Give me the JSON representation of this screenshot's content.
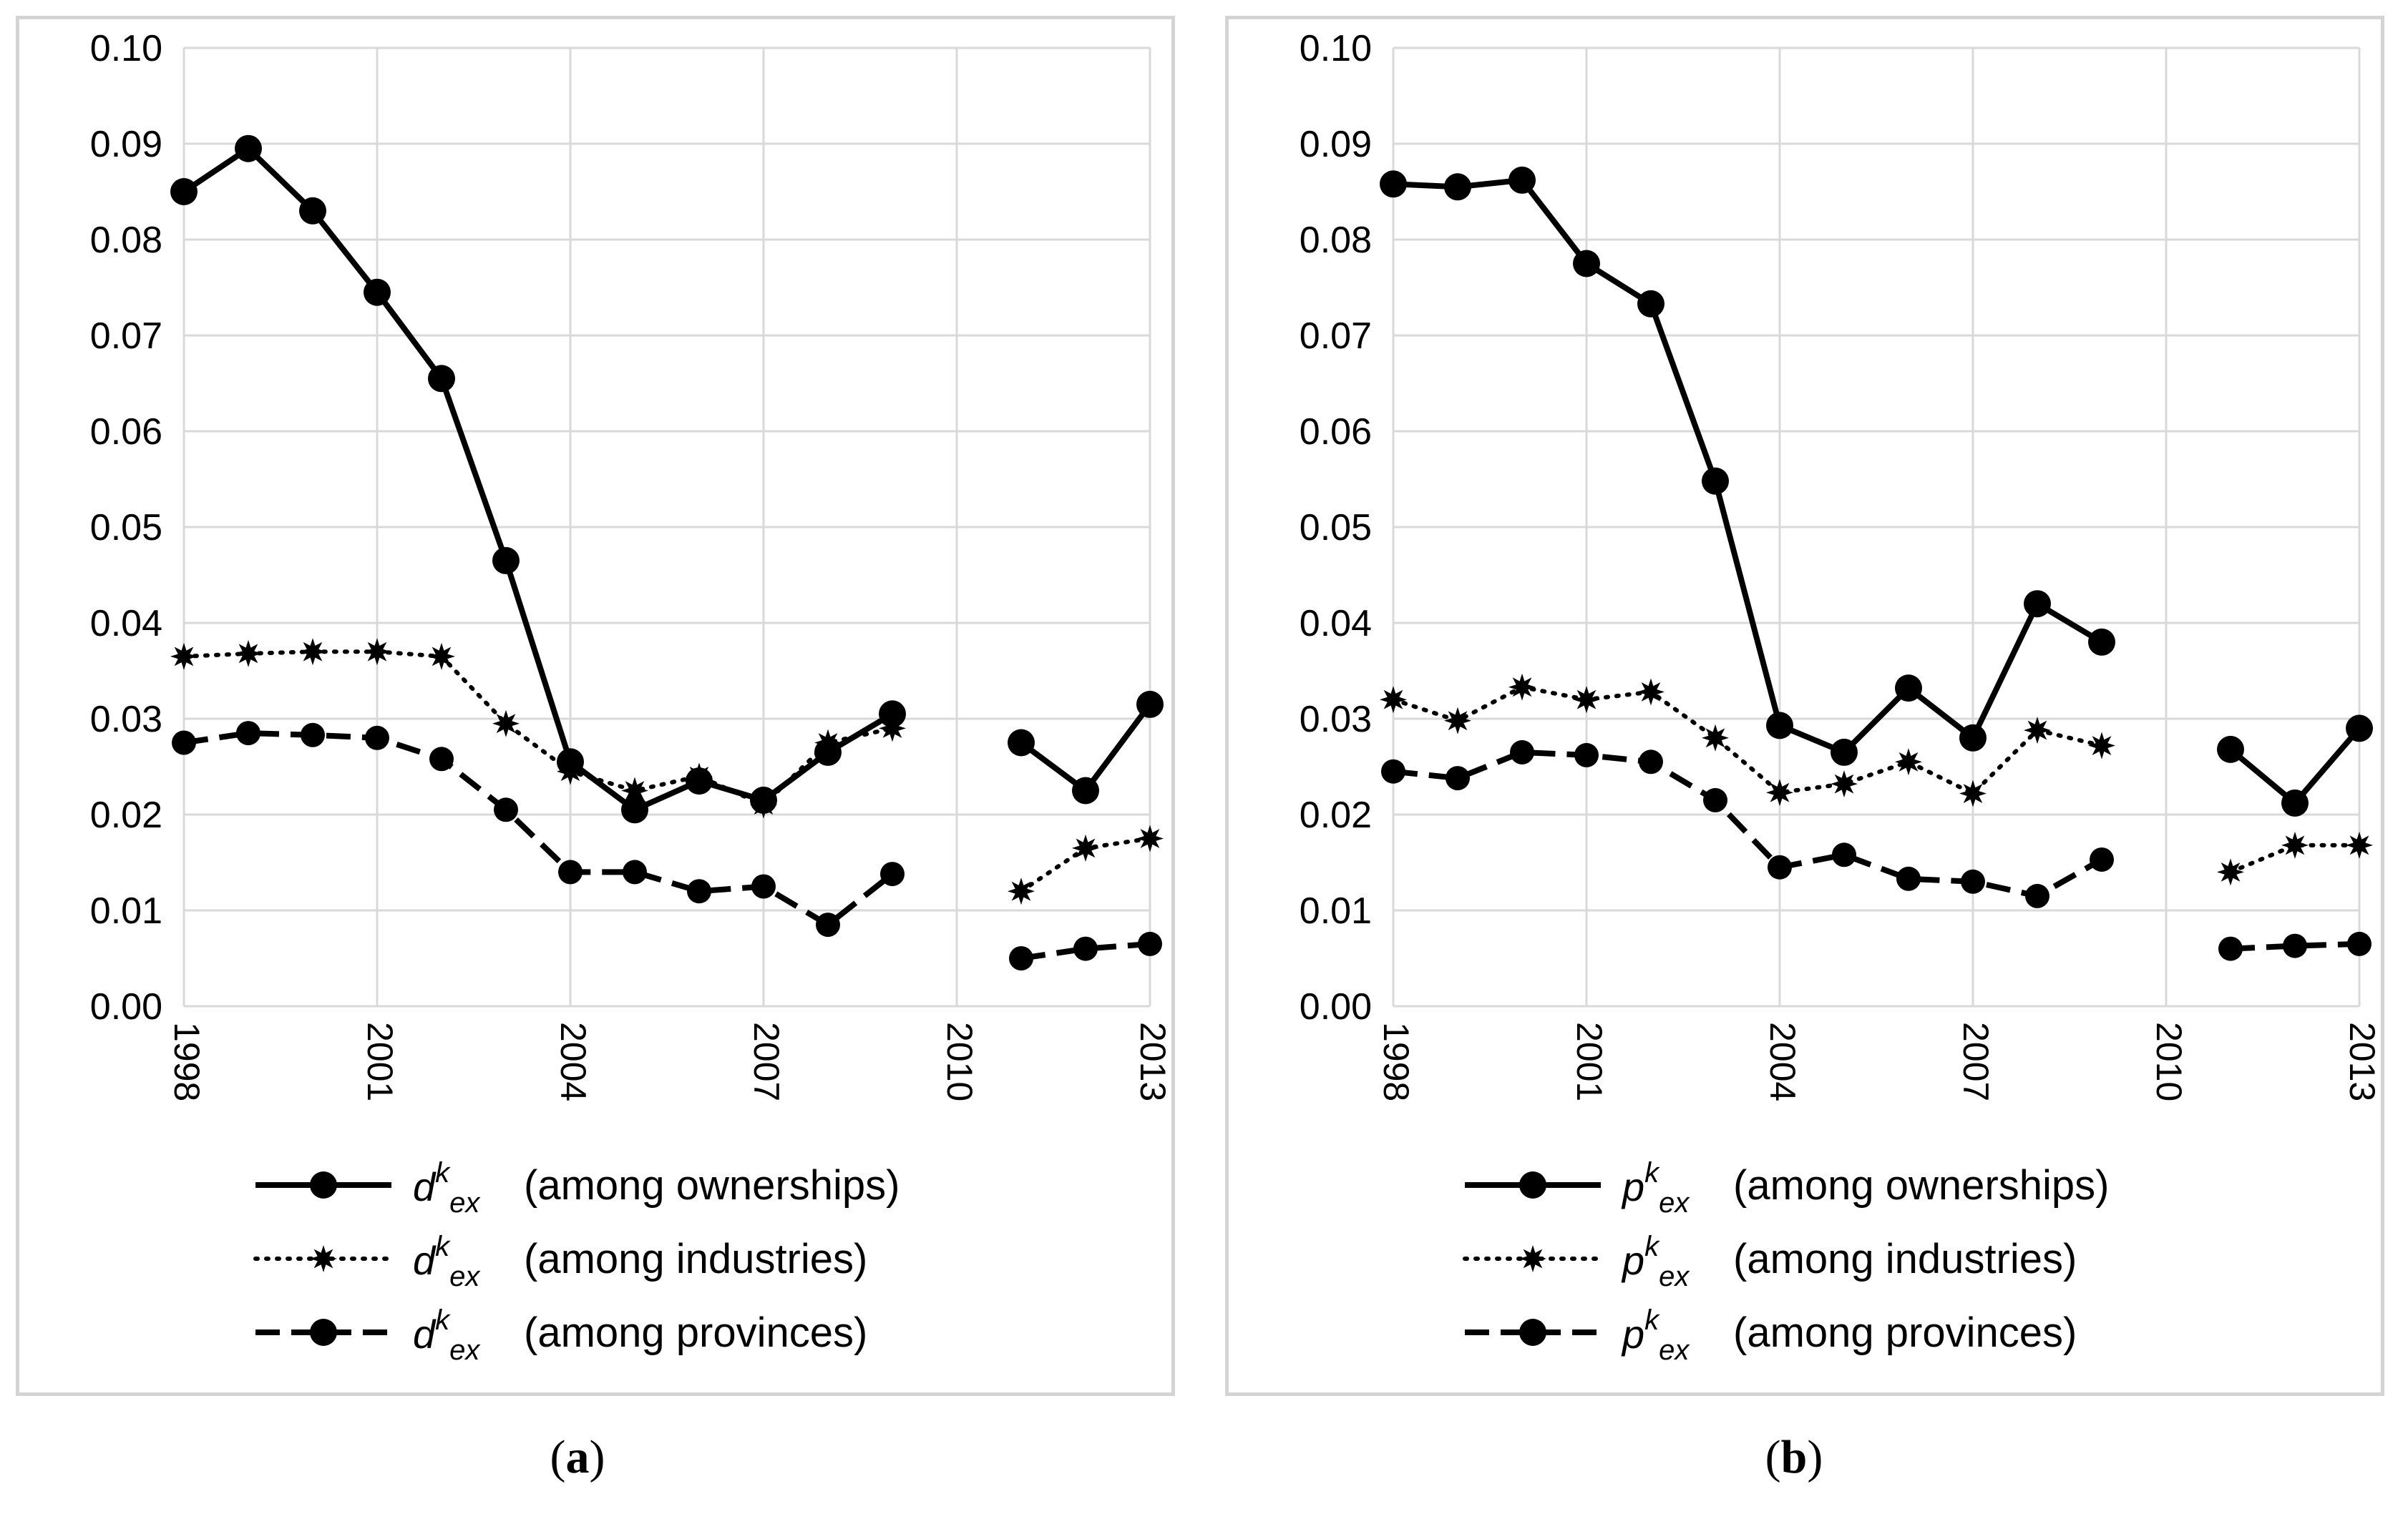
{
  "chart_data": [
    {
      "type": "line",
      "panel_label": "a",
      "x": [
        1998,
        1999,
        2000,
        2001,
        2002,
        2003,
        2004,
        2005,
        2006,
        2007,
        2008,
        2009,
        2010,
        2011,
        2012,
        2013
      ],
      "x_tick_labels": [
        "1998",
        "2001",
        "2004",
        "2007",
        "2010",
        "2013"
      ],
      "x_ticks": [
        1998,
        2001,
        2004,
        2007,
        2010,
        2013
      ],
      "ylim": [
        0,
        0.1
      ],
      "y_tick_labels": [
        "0.00",
        "0.01",
        "0.02",
        "0.03",
        "0.04",
        "0.05",
        "0.06",
        "0.07",
        "0.08",
        "0.09",
        "0.10"
      ],
      "grid": true,
      "legend_position": "bottom",
      "series": [
        {
          "name": "among ownerships",
          "symbol": "d",
          "style": "solid",
          "marker": "circle",
          "values": [
            0.085,
            0.0895,
            0.083,
            0.0745,
            0.0655,
            0.0465,
            0.0255,
            0.0205,
            0.0235,
            0.0215,
            0.0265,
            0.0305,
            null,
            0.0275,
            0.0225,
            0.0315
          ]
        },
        {
          "name": "among industries",
          "symbol": "d",
          "style": "dotted",
          "marker": "star",
          "values": [
            0.0365,
            0.0368,
            0.037,
            0.037,
            0.0365,
            0.0295,
            0.0245,
            0.0225,
            0.024,
            0.021,
            0.0275,
            0.029,
            null,
            0.012,
            0.0165,
            0.0175
          ]
        },
        {
          "name": "among provinces",
          "symbol": "d",
          "style": "dashed",
          "marker": "circle",
          "values": [
            0.0275,
            0.0285,
            0.0283,
            0.028,
            0.0258,
            0.0205,
            0.014,
            0.014,
            0.012,
            0.0125,
            0.0085,
            0.0138,
            null,
            0.005,
            0.006,
            0.0065
          ]
        }
      ]
    },
    {
      "type": "line",
      "panel_label": "b",
      "x": [
        1998,
        1999,
        2000,
        2001,
        2002,
        2003,
        2004,
        2005,
        2006,
        2007,
        2008,
        2009,
        2010,
        2011,
        2012,
        2013
      ],
      "x_tick_labels": [
        "1998",
        "2001",
        "2004",
        "2007",
        "2010",
        "2013"
      ],
      "x_ticks": [
        1998,
        2001,
        2004,
        2007,
        2010,
        2013
      ],
      "ylim": [
        0,
        0.1
      ],
      "y_tick_labels": [
        "0.00",
        "0.01",
        "0.02",
        "0.03",
        "0.04",
        "0.05",
        "0.06",
        "0.07",
        "0.08",
        "0.09",
        "0.10"
      ],
      "grid": true,
      "legend_position": "bottom",
      "series": [
        {
          "name": "among ownerships",
          "symbol": "p",
          "style": "solid",
          "marker": "circle",
          "values": [
            0.0858,
            0.0855,
            0.0862,
            0.0775,
            0.0733,
            0.0548,
            0.0293,
            0.0265,
            0.0332,
            0.028,
            0.042,
            0.038,
            null,
            0.0268,
            0.0212,
            0.029
          ]
        },
        {
          "name": "among industries",
          "symbol": "p",
          "style": "dotted",
          "marker": "star",
          "values": [
            0.032,
            0.0298,
            0.0333,
            0.032,
            0.0328,
            0.028,
            0.0223,
            0.0232,
            0.0255,
            0.0222,
            0.0288,
            0.0272,
            null,
            0.014,
            0.0168,
            0.0168
          ]
        },
        {
          "name": "among provinces",
          "symbol": "p",
          "style": "dashed",
          "marker": "circle",
          "values": [
            0.0245,
            0.0238,
            0.0265,
            0.0262,
            0.0255,
            0.0215,
            0.0145,
            0.0158,
            0.0133,
            0.013,
            0.0115,
            0.0153,
            null,
            0.006,
            0.0063,
            0.0065
          ]
        }
      ]
    }
  ],
  "legend": {
    "subscript": "ex",
    "superscript": "k",
    "open_paren": "(",
    "close_paren": ")"
  }
}
